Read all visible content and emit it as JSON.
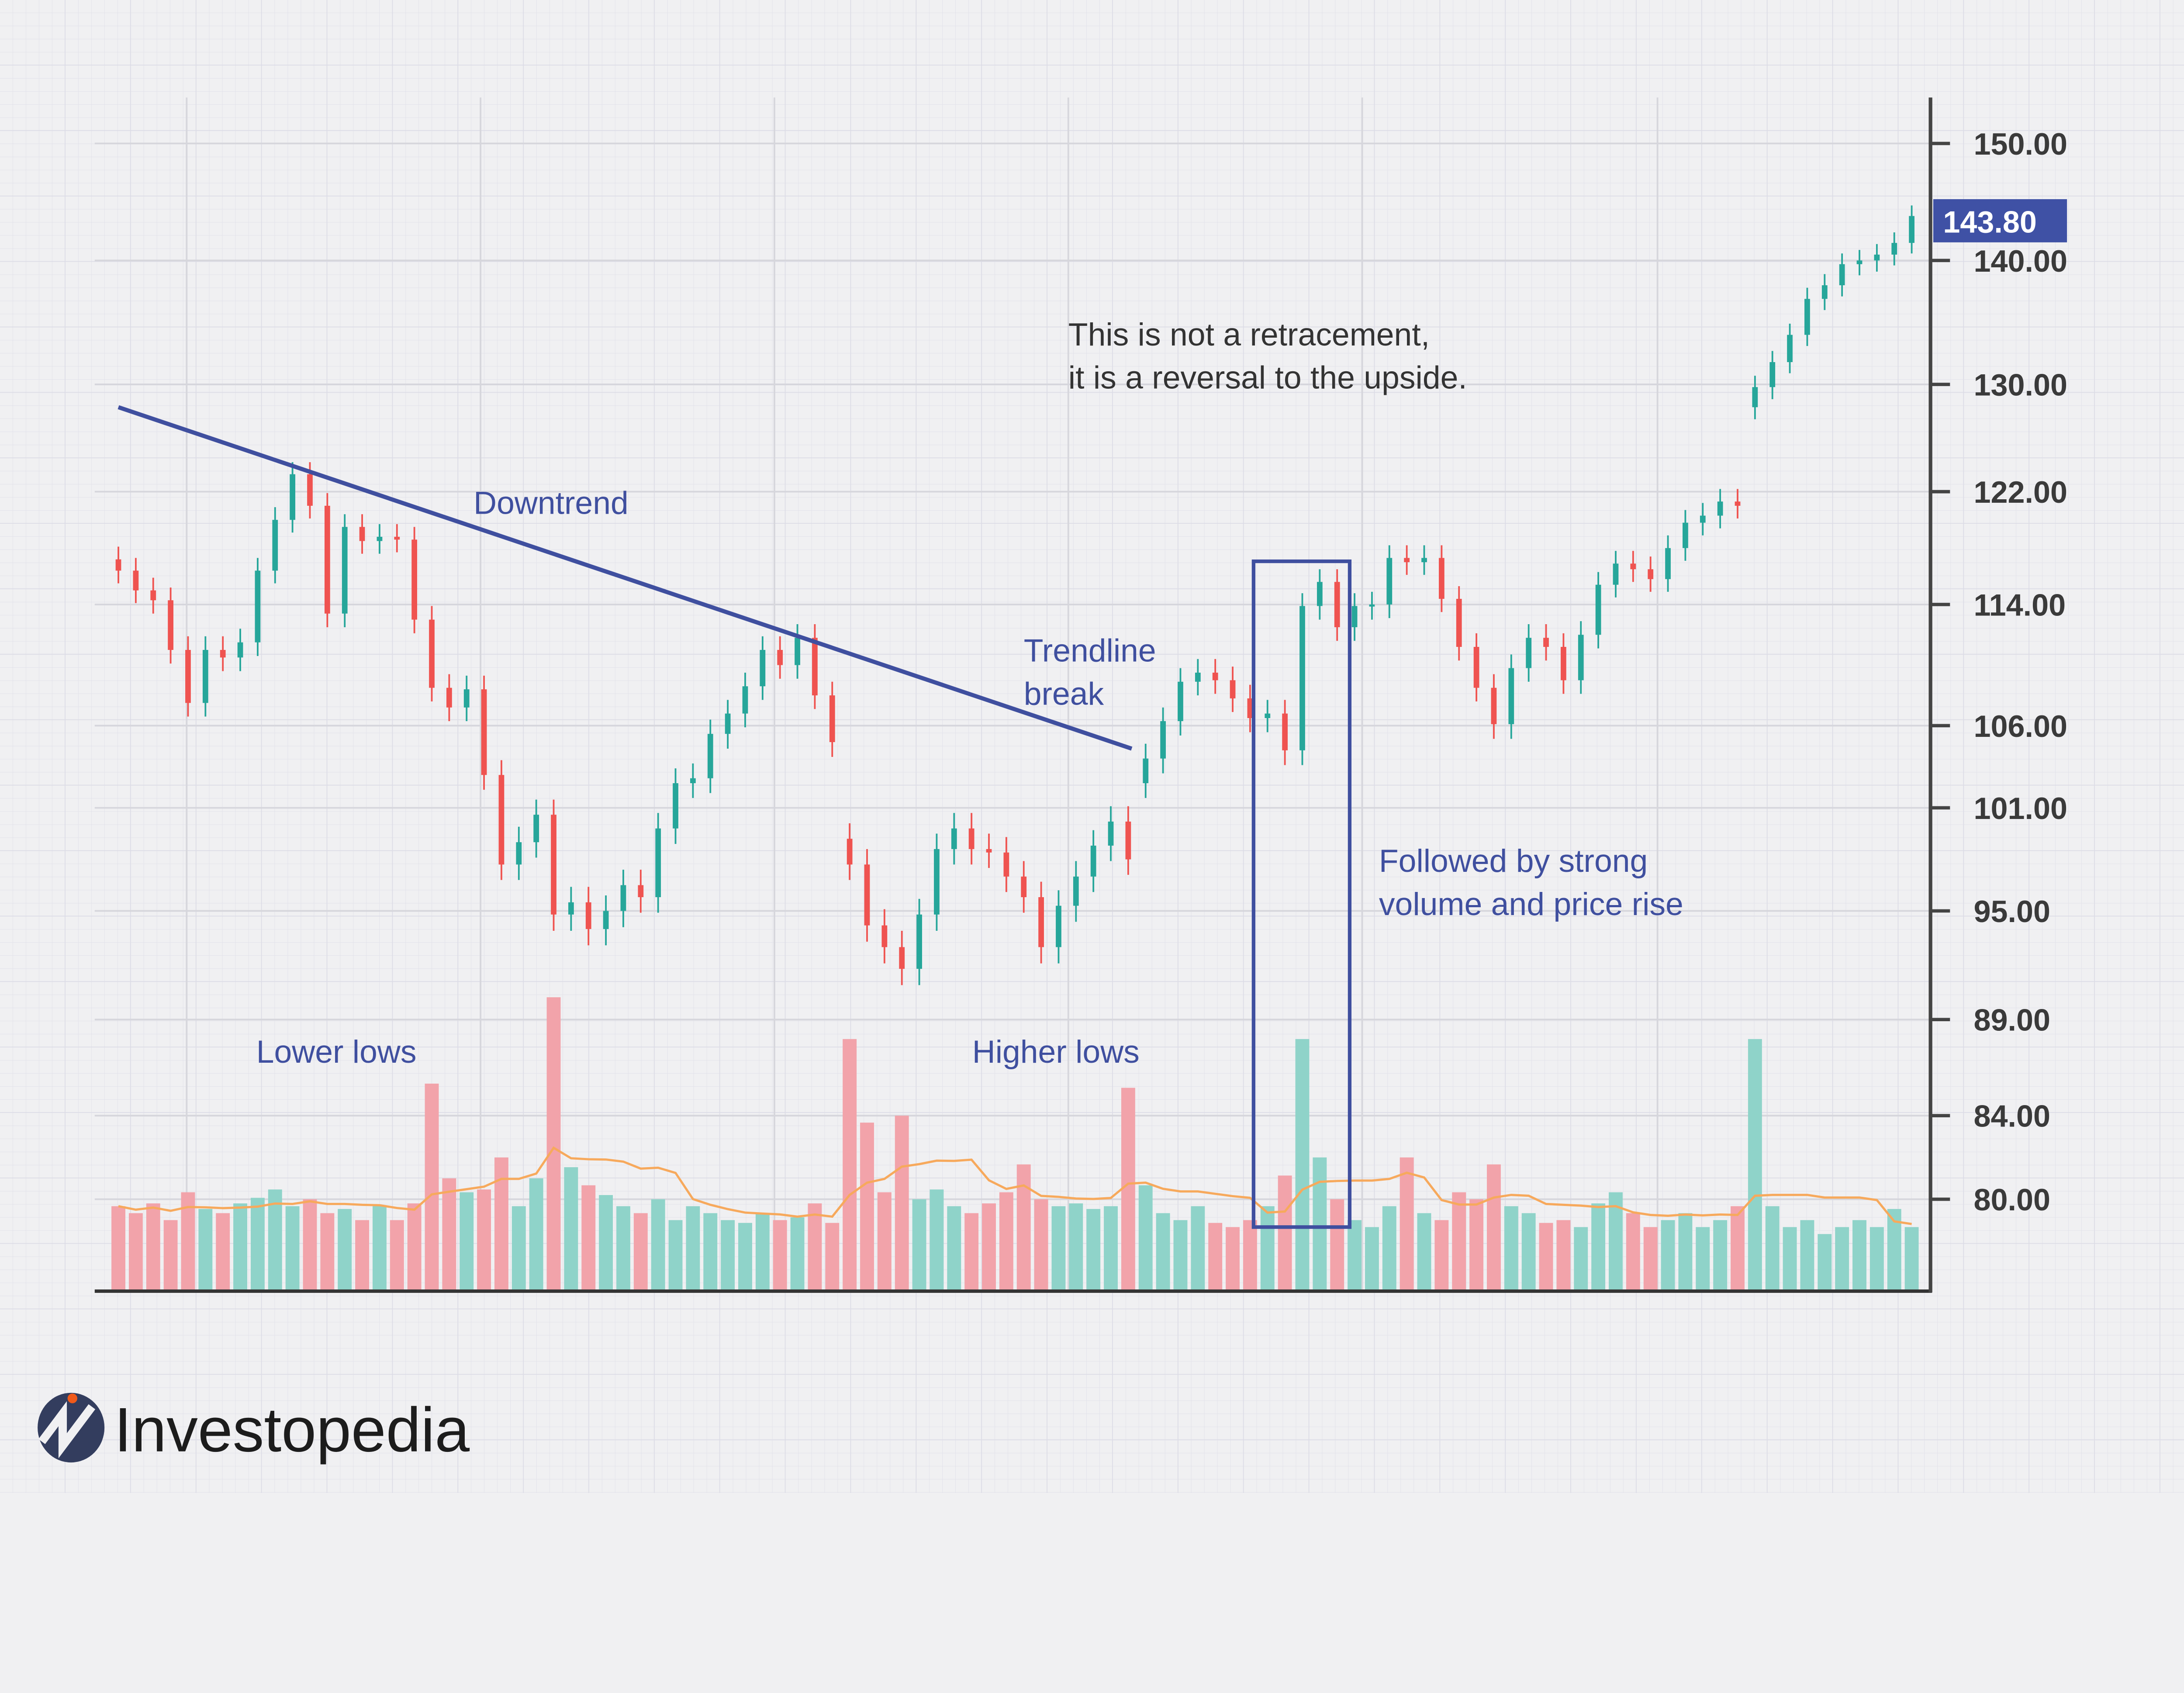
{
  "chart_data": {
    "type": "candlestick",
    "title": "",
    "xlabel": "",
    "ylabel": "",
    "y_ticks": [
      150,
      140,
      130,
      122,
      114,
      106,
      101,
      95,
      89,
      84,
      80
    ],
    "y_tick_labels": [
      "150.00",
      "140.00",
      "130.00",
      "122.00",
      "114.00",
      "106.00",
      "101.00",
      "95.00",
      "89.00",
      "84.00",
      "80.00"
    ],
    "last_price_label": "143.80",
    "last_price": 143.8,
    "grid": true,
    "closes": [
      116.4,
      115.0,
      114.3,
      111.0,
      107.5,
      111.0,
      110.5,
      111.5,
      116.4,
      120.0,
      123.3,
      121.0,
      113.4,
      119.5,
      118.5,
      118.8,
      118.6,
      113.0,
      108.5,
      107.2,
      108.4,
      103.0,
      97.7,
      99.0,
      100.6,
      94.8,
      95.5,
      94.0,
      95.0,
      96.5,
      95.8,
      99.8,
      102.5,
      102.8,
      105.5,
      106.8,
      108.6,
      111.0,
      110.0,
      111.8,
      108.0,
      105.0,
      97.7,
      94.2,
      93.0,
      91.8,
      94.8,
      98.6,
      99.8,
      98.6,
      98.4,
      97.0,
      95.8,
      93.0,
      95.3,
      97.0,
      98.8,
      100.2,
      98.0,
      104.0,
      106.3,
      108.9,
      109.5,
      109.0,
      107.8,
      106.5,
      106.8,
      104.5,
      113.9,
      115.6,
      112.5,
      113.9,
      114.0,
      117.3,
      117.0,
      117.3,
      114.4,
      111.2,
      108.5,
      106.1,
      109.8,
      111.8,
      111.2,
      109.0,
      112.0,
      115.4,
      116.9,
      116.5,
      115.8,
      118.0,
      119.8,
      120.3,
      121.3,
      121.0,
      129.8,
      131.8,
      134.0,
      136.9,
      138.0,
      139.7,
      140.0,
      140.5,
      141.5,
      143.8
    ],
    "gaps_before": [
      42,
      59,
      94
    ],
    "volume_relative": [
      60,
      55,
      62,
      50,
      70,
      58,
      55,
      62,
      66,
      72,
      60,
      65,
      55,
      58,
      50,
      60,
      50,
      62,
      148,
      80,
      70,
      72,
      95,
      60,
      80,
      210,
      88,
      75,
      68,
      60,
      55,
      65,
      50,
      60,
      55,
      50,
      48,
      55,
      50,
      52,
      62,
      48,
      180,
      120,
      70,
      125,
      65,
      72,
      60,
      55,
      62,
      70,
      90,
      65,
      60,
      62,
      58,
      60,
      145,
      75,
      55,
      50,
      60,
      48,
      45,
      50,
      60,
      82,
      180,
      95,
      65,
      50,
      45,
      60,
      95,
      55,
      50,
      70,
      65,
      90,
      60,
      55,
      48,
      50,
      45,
      62,
      70,
      55,
      45,
      50,
      55,
      45,
      50,
      60,
      180,
      60,
      45,
      50,
      40,
      45,
      50,
      45,
      58,
      45
    ],
    "trendline": {
      "from": {
        "index": 0,
        "price": 128.3
      },
      "to": {
        "index": 58.2,
        "price": 104.6
      }
    },
    "annotations": {
      "downtrend": "Downtrend",
      "trendline_break_1": "Trendline",
      "trendline_break_2": "break",
      "reversal_1": "This is not a retracement,",
      "reversal_2": "it is a reversal to the upside.",
      "followed_1": "Followed by strong",
      "followed_2": "volume and price rise",
      "lower_lows": "Lower lows",
      "higher_lows": "Higher lows"
    },
    "colors": {
      "up": "#26a69a",
      "down": "#ef5350",
      "up_volume": "#8fd3c9",
      "down_volume": "#f2a3aa",
      "volume_ma": "#f7a95c",
      "annotation": "#3f4f9f",
      "price_tag": "#3f51a5"
    }
  },
  "brand": {
    "logo_text": "Investopedia"
  }
}
